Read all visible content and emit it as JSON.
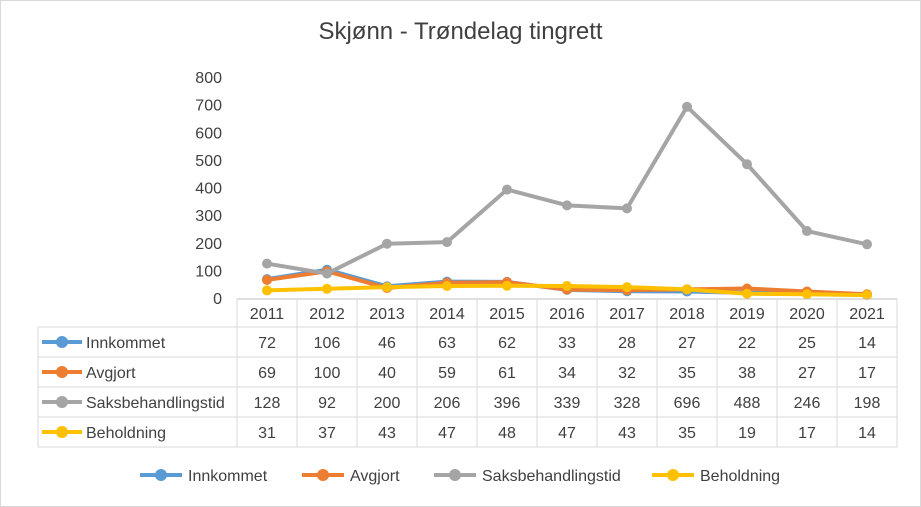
{
  "chart_data": {
    "type": "line",
    "title": "Skjønn - Trøndelag tingrett",
    "categories": [
      "2011",
      "2012",
      "2013",
      "2014",
      "2015",
      "2016",
      "2017",
      "2018",
      "2019",
      "2020",
      "2021"
    ],
    "ylim": [
      0,
      800
    ],
    "yticks": [
      0,
      100,
      200,
      300,
      400,
      500,
      600,
      700,
      800
    ],
    "grid": false,
    "legend": "bottom",
    "data_table": true,
    "series": [
      {
        "name": "Innkommet",
        "color": "#5b9bd5",
        "values": [
          72,
          106,
          46,
          63,
          62,
          33,
          28,
          27,
          22,
          25,
          14
        ]
      },
      {
        "name": "Avgjort",
        "color": "#ed7d31",
        "values": [
          69,
          100,
          40,
          59,
          61,
          34,
          32,
          35,
          38,
          27,
          17
        ]
      },
      {
        "name": "Saksbehandlingstid",
        "color": "#a5a5a5",
        "values": [
          128,
          92,
          200,
          206,
          396,
          339,
          328,
          696,
          488,
          246,
          198
        ]
      },
      {
        "name": "Beholdning",
        "color": "#ffc000",
        "values": [
          31,
          37,
          43,
          47,
          48,
          47,
          43,
          35,
          19,
          17,
          14
        ]
      }
    ]
  }
}
